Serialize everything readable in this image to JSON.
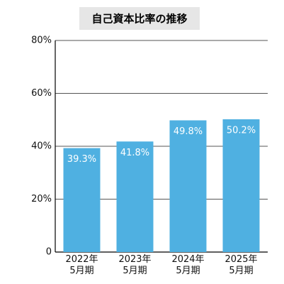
{
  "chart_data": {
    "type": "bar",
    "title": "自己資本比率の推移",
    "categories": [
      "2022年\n5月期",
      "2023年\n5月期",
      "2024年\n5月期",
      "2025年\n5月期"
    ],
    "values": [
      39.3,
      41.8,
      49.8,
      50.2
    ],
    "value_labels": [
      "39.3%",
      "41.8%",
      "49.8%",
      "50.2%"
    ],
    "color": "#4fb0e1",
    "ylim": [
      0,
      80
    ],
    "yticks": [
      0,
      {
        "value": 20,
        "label": "20%"
      },
      {
        "value": 40,
        "label": "40%"
      },
      {
        "value": 60,
        "label": "60%"
      },
      {
        "value": 80,
        "label": "80%"
      }
    ],
    "grid": true
  }
}
